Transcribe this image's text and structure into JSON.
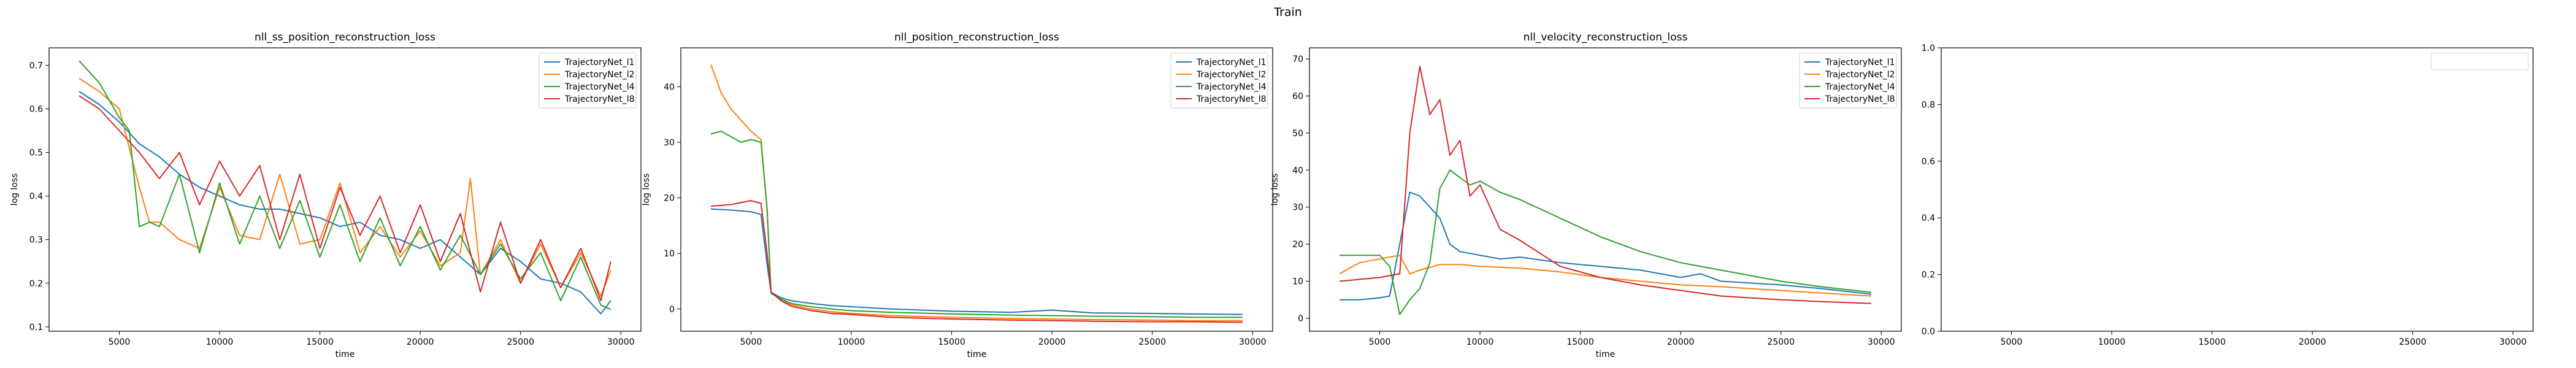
{
  "figure": {
    "suptitle": "Train"
  },
  "colors": {
    "TrajectoryNet_l1": "#1f77b4",
    "TrajectoryNet_l2": "#ff7f0e",
    "TrajectoryNet_l4": "#2ca02c",
    "TrajectoryNet_l8": "#d62728"
  },
  "chart_data": [
    {
      "type": "line",
      "title": "nll_ss_position_reconstruction_loss",
      "xlabel": "time",
      "ylabel": "log loss",
      "xlim": [
        1500,
        31000
      ],
      "ylim": [
        0.09,
        0.74
      ],
      "xticks": [
        5000,
        10000,
        15000,
        20000,
        25000,
        30000
      ],
      "yticks": [
        0.1,
        0.2,
        0.3,
        0.4,
        0.5,
        0.6,
        0.7
      ],
      "grid": false,
      "legend": "upper right",
      "series": [
        {
          "name": "TrajectoryNet_l1",
          "x": [
            3000,
            4000,
            5000,
            6000,
            7000,
            8000,
            9000,
            10000,
            11000,
            12000,
            13000,
            14000,
            15000,
            16000,
            17000,
            18000,
            19000,
            20000,
            21000,
            22000,
            23000,
            24000,
            25000,
            26000,
            27000,
            28000,
            29000,
            29500
          ],
          "y": [
            0.64,
            0.61,
            0.57,
            0.52,
            0.49,
            0.45,
            0.42,
            0.4,
            0.38,
            0.37,
            0.37,
            0.36,
            0.35,
            0.33,
            0.34,
            0.31,
            0.3,
            0.28,
            0.3,
            0.26,
            0.22,
            0.28,
            0.25,
            0.21,
            0.2,
            0.18,
            0.13,
            0.16
          ]
        },
        {
          "name": "TrajectoryNet_l2",
          "x": [
            3000,
            4000,
            5000,
            6000,
            6500,
            7000,
            8000,
            9000,
            10000,
            11000,
            12000,
            13000,
            14000,
            15000,
            16000,
            17000,
            18000,
            19000,
            20000,
            21000,
            22000,
            22500,
            23000,
            24000,
            25000,
            26000,
            27000,
            28000,
            29000,
            29500
          ],
          "y": [
            0.67,
            0.64,
            0.6,
            0.42,
            0.34,
            0.34,
            0.3,
            0.28,
            0.42,
            0.31,
            0.3,
            0.45,
            0.29,
            0.3,
            0.43,
            0.27,
            0.33,
            0.26,
            0.32,
            0.24,
            0.27,
            0.44,
            0.22,
            0.3,
            0.2,
            0.29,
            0.19,
            0.27,
            0.17,
            0.23
          ]
        },
        {
          "name": "TrajectoryNet_l4",
          "x": [
            3000,
            4000,
            5000,
            5500,
            6000,
            6500,
            7000,
            8000,
            9000,
            10000,
            11000,
            12000,
            13000,
            14000,
            15000,
            16000,
            17000,
            18000,
            19000,
            20000,
            21000,
            22000,
            23000,
            24000,
            25000,
            26000,
            27000,
            28000,
            29000,
            29500
          ],
          "y": [
            0.71,
            0.66,
            0.58,
            0.55,
            0.33,
            0.34,
            0.33,
            0.45,
            0.27,
            0.43,
            0.29,
            0.4,
            0.28,
            0.39,
            0.26,
            0.38,
            0.25,
            0.35,
            0.24,
            0.33,
            0.23,
            0.31,
            0.22,
            0.29,
            0.21,
            0.27,
            0.16,
            0.26,
            0.15,
            0.14
          ]
        },
        {
          "name": "TrajectoryNet_l8",
          "x": [
            3000,
            4000,
            5000,
            6000,
            7000,
            8000,
            9000,
            10000,
            11000,
            12000,
            13000,
            14000,
            15000,
            16000,
            17000,
            18000,
            19000,
            20000,
            21000,
            22000,
            23000,
            24000,
            25000,
            26000,
            27000,
            28000,
            29000,
            29500
          ],
          "y": [
            0.63,
            0.6,
            0.55,
            0.5,
            0.44,
            0.5,
            0.38,
            0.48,
            0.4,
            0.47,
            0.3,
            0.45,
            0.28,
            0.42,
            0.31,
            0.4,
            0.27,
            0.38,
            0.25,
            0.36,
            0.18,
            0.34,
            0.2,
            0.3,
            0.19,
            0.28,
            0.16,
            0.25
          ]
        }
      ]
    },
    {
      "type": "line",
      "title": "nll_position_reconstruction_loss",
      "xlabel": "time",
      "ylabel": "log loss",
      "xlim": [
        1500,
        31000
      ],
      "ylim": [
        -4,
        47
      ],
      "xticks": [
        5000,
        10000,
        15000,
        20000,
        25000,
        30000
      ],
      "yticks": [
        0,
        10,
        20,
        30,
        40
      ],
      "grid": false,
      "legend": "upper right",
      "series": [
        {
          "name": "TrajectoryNet_l1",
          "x": [
            3000,
            4000,
            5000,
            5500,
            5800,
            6000,
            6500,
            7000,
            8000,
            9000,
            10000,
            12000,
            15000,
            18000,
            20000,
            22000,
            25000,
            27000,
            29500
          ],
          "y": [
            18.0,
            17.8,
            17.5,
            17.0,
            8.0,
            3.0,
            2.0,
            1.5,
            1.0,
            0.6,
            0.4,
            0.0,
            -0.4,
            -0.6,
            -0.2,
            -0.7,
            -0.8,
            -0.9,
            -1.0
          ]
        },
        {
          "name": "TrajectoryNet_l2",
          "x": [
            3000,
            3500,
            4000,
            4500,
            5000,
            5500,
            5800,
            6000,
            6500,
            7000,
            8000,
            9000,
            10000,
            12000,
            15000,
            18000,
            20000,
            22000,
            25000,
            27000,
            29500
          ],
          "y": [
            44.0,
            39.0,
            36.0,
            34.0,
            32.0,
            30.5,
            18.0,
            3.0,
            1.5,
            0.8,
            0.0,
            -0.5,
            -0.8,
            -1.2,
            -1.5,
            -1.7,
            -1.8,
            -1.9,
            -2.0,
            -2.1,
            -2.1
          ]
        },
        {
          "name": "TrajectoryNet_l4",
          "x": [
            3000,
            3500,
            4000,
            4500,
            5000,
            5500,
            5800,
            6000,
            6500,
            7000,
            8000,
            9000,
            10000,
            12000,
            15000,
            18000,
            20000,
            22000,
            25000,
            27000,
            29500
          ],
          "y": [
            31.5,
            32.0,
            31.0,
            30.0,
            30.5,
            30.0,
            18.0,
            2.8,
            1.8,
            1.0,
            0.4,
            0.0,
            -0.3,
            -0.6,
            -0.9,
            -1.1,
            -1.2,
            -1.3,
            -1.4,
            -1.5,
            -1.5
          ]
        },
        {
          "name": "TrajectoryNet_l8",
          "x": [
            3000,
            4000,
            5000,
            5500,
            5800,
            6000,
            6500,
            7000,
            8000,
            9000,
            10000,
            12000,
            15000,
            18000,
            20000,
            22000,
            25000,
            27000,
            29500
          ],
          "y": [
            18.5,
            18.8,
            19.5,
            19.0,
            10.0,
            3.0,
            1.5,
            0.5,
            -0.3,
            -0.8,
            -1.0,
            -1.5,
            -1.8,
            -2.0,
            -2.1,
            -2.2,
            -2.3,
            -2.3,
            -2.4
          ]
        }
      ]
    },
    {
      "type": "line",
      "title": "nll_velocity_reconstruction_loss",
      "xlabel": "time",
      "ylabel": "log loss",
      "xlim": [
        1500,
        31000
      ],
      "ylim": [
        -3.5,
        73
      ],
      "xticks": [
        5000,
        10000,
        15000,
        20000,
        25000,
        30000
      ],
      "yticks": [
        0,
        10,
        20,
        30,
        40,
        50,
        60,
        70
      ],
      "grid": false,
      "legend": "upper right",
      "series": [
        {
          "name": "TrajectoryNet_l1",
          "x": [
            3000,
            4000,
            5000,
            5500,
            6000,
            6500,
            7000,
            7500,
            8000,
            8500,
            9000,
            10000,
            11000,
            12000,
            14000,
            16000,
            18000,
            20000,
            21000,
            22000,
            25000,
            27000,
            29500
          ],
          "y": [
            5.0,
            5.0,
            5.5,
            6.0,
            20.0,
            34.0,
            33.0,
            30.0,
            27.0,
            20.0,
            18.0,
            17.0,
            16.0,
            16.5,
            15.0,
            14.0,
            13.0,
            11.0,
            12.0,
            10.0,
            9.0,
            8.0,
            6.5
          ]
        },
        {
          "name": "TrajectoryNet_l2",
          "x": [
            3000,
            4000,
            5000,
            6000,
            6500,
            7000,
            8000,
            9000,
            10000,
            12000,
            14000,
            16000,
            18000,
            20000,
            22000,
            25000,
            27000,
            29500
          ],
          "y": [
            12.0,
            15.0,
            16.0,
            17.0,
            12.0,
            13.0,
            14.5,
            14.5,
            14.0,
            13.5,
            12.5,
            11.0,
            10.0,
            9.0,
            8.5,
            7.5,
            6.8,
            6.0
          ]
        },
        {
          "name": "TrajectoryNet_l4",
          "x": [
            3000,
            4000,
            5000,
            5500,
            6000,
            6500,
            7000,
            7500,
            8000,
            8500,
            9000,
            9500,
            10000,
            11000,
            12000,
            14000,
            16000,
            18000,
            20000,
            22000,
            25000,
            27000,
            29500
          ],
          "y": [
            17.0,
            17.0,
            17.0,
            14.0,
            1.0,
            5.0,
            8.0,
            15.0,
            35.0,
            40.0,
            38.0,
            36.0,
            37.0,
            34.0,
            32.0,
            27.0,
            22.0,
            18.0,
            15.0,
            13.0,
            10.0,
            8.5,
            7.0
          ]
        },
        {
          "name": "TrajectoryNet_l8",
          "x": [
            3000,
            4000,
            5000,
            6000,
            6500,
            7000,
            7500,
            8000,
            8500,
            9000,
            9500,
            10000,
            11000,
            12000,
            14000,
            16000,
            18000,
            20000,
            22000,
            25000,
            27000,
            29500
          ],
          "y": [
            10.0,
            10.5,
            11.0,
            12.0,
            50.0,
            68.0,
            55.0,
            59.0,
            44.0,
            48.0,
            33.0,
            36.0,
            24.0,
            21.0,
            14.0,
            11.0,
            9.0,
            7.5,
            6.0,
            5.0,
            4.5,
            4.0
          ]
        }
      ]
    },
    {
      "type": "line",
      "title": "",
      "xlabel": "",
      "ylabel": "",
      "xlim": [
        1500,
        31000
      ],
      "ylim": [
        0,
        1
      ],
      "xticks": [
        5000,
        10000,
        15000,
        20000,
        25000,
        30000
      ],
      "yticks": [
        0.0,
        0.2,
        0.4,
        0.6,
        0.8,
        1.0
      ],
      "grid": false,
      "legend": "upper right",
      "series": []
    }
  ]
}
